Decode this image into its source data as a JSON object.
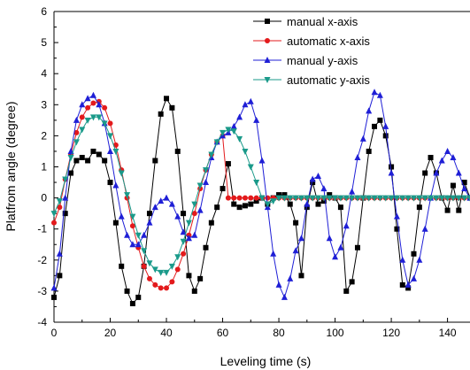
{
  "chart_data": {
    "type": "line",
    "title": "",
    "xlabel": "Leveling time (s)",
    "ylabel": "Platfrom angle (degree)",
    "xlim": [
      0,
      148
    ],
    "ylim": [
      -4,
      6
    ],
    "xticks": [
      0,
      20,
      40,
      60,
      80,
      100,
      120,
      140
    ],
    "yticks": [
      -4,
      -3,
      -2,
      -1,
      0,
      1,
      2,
      3,
      4,
      5,
      6
    ],
    "grid": false,
    "legend_position": "top-right",
    "series": [
      {
        "name": "manual x-axis",
        "color": "#000000",
        "marker": "square",
        "x": [
          0,
          2,
          4,
          6,
          8,
          10,
          12,
          14,
          16,
          18,
          20,
          22,
          24,
          26,
          28,
          30,
          32,
          34,
          36,
          38,
          40,
          42,
          44,
          46,
          48,
          50,
          52,
          54,
          56,
          58,
          60,
          62,
          64,
          66,
          68,
          70,
          72,
          74,
          76,
          78,
          80,
          82,
          84,
          86,
          88,
          90,
          92,
          94,
          96,
          98,
          100,
          102,
          104,
          106,
          108,
          110,
          112,
          114,
          116,
          118,
          120,
          122,
          124,
          126,
          128,
          130,
          132,
          134,
          136,
          138,
          140,
          142,
          144,
          146,
          148
        ],
        "y": [
          -3.2,
          -2.5,
          -0.5,
          0.8,
          1.2,
          1.3,
          1.2,
          1.5,
          1.4,
          1.2,
          0.5,
          -0.8,
          -2.2,
          -3.0,
          -3.4,
          -3.2,
          -2.2,
          -0.5,
          1.2,
          2.7,
          3.2,
          2.9,
          1.5,
          -0.5,
          -2.5,
          -3.0,
          -2.6,
          -1.6,
          -0.8,
          -0.3,
          0.3,
          1.1,
          -0.2,
          -0.3,
          -0.25,
          -0.2,
          -0.1,
          0.0,
          -0.2,
          0.0,
          0.1,
          0.1,
          -0.2,
          -0.8,
          -2.5,
          -0.3,
          0.5,
          -0.2,
          -0.1,
          0.1,
          0.0,
          -0.3,
          -3.0,
          -2.7,
          -1.6,
          0.0,
          1.5,
          2.3,
          2.5,
          2.0,
          1.0,
          -1.0,
          -2.8,
          -2.9,
          -1.8,
          -0.3,
          0.8,
          1.3,
          0.8,
          0.0,
          -0.4,
          0.4,
          -0.4,
          0.5,
          0.0
        ]
      },
      {
        "name": "automatic x-axis",
        "color": "#e31a1c",
        "marker": "circle",
        "x": [
          0,
          2,
          4,
          6,
          8,
          10,
          12,
          14,
          16,
          18,
          20,
          22,
          24,
          26,
          28,
          30,
          32,
          34,
          36,
          38,
          40,
          42,
          44,
          46,
          48,
          50,
          52,
          54,
          56,
          58,
          60,
          62,
          64,
          66,
          68,
          70,
          72,
          74,
          76,
          78,
          80,
          82,
          84,
          86,
          88,
          90,
          92,
          94,
          96,
          98,
          100,
          102,
          104,
          106,
          108,
          110,
          112,
          114,
          116,
          118,
          120,
          122,
          124,
          126,
          128,
          130,
          132,
          134,
          136,
          138,
          140,
          142,
          144,
          146,
          148
        ],
        "y": [
          -0.8,
          -0.3,
          0.6,
          1.4,
          2.1,
          2.6,
          2.9,
          3.05,
          3.1,
          2.9,
          2.4,
          1.7,
          0.9,
          0.0,
          -0.9,
          -1.6,
          -2.2,
          -2.6,
          -2.8,
          -2.9,
          -2.9,
          -2.7,
          -2.3,
          -1.8,
          -1.2,
          -0.5,
          0.3,
          0.9,
          1.4,
          1.8,
          2.0,
          0.0,
          0.0,
          0.0,
          0.0,
          0.0,
          0.0,
          0.0,
          0.0,
          0.0,
          0.0,
          0.0,
          0.0,
          0.0,
          0.0,
          0.0,
          0.0,
          0.0,
          0.0,
          0.0,
          0.0,
          0.0,
          0.0,
          0.0,
          0.0,
          0.0,
          0.0,
          0.0,
          0.0,
          0.0,
          0.0,
          0.0,
          0.0,
          0.0,
          0.0,
          0.0,
          0.0,
          0.0,
          0.0,
          0.0,
          0.0,
          0.0,
          0.0,
          0.0,
          0.0
        ]
      },
      {
        "name": "manual y-axis",
        "color": "#1f1fd6",
        "marker": "triangle-up",
        "x": [
          0,
          2,
          4,
          6,
          8,
          10,
          12,
          14,
          16,
          18,
          20,
          22,
          24,
          26,
          28,
          30,
          32,
          34,
          36,
          38,
          40,
          42,
          44,
          46,
          48,
          50,
          52,
          54,
          56,
          58,
          60,
          62,
          64,
          66,
          68,
          70,
          72,
          74,
          76,
          78,
          80,
          82,
          84,
          86,
          88,
          90,
          92,
          94,
          96,
          98,
          100,
          102,
          104,
          106,
          108,
          110,
          112,
          114,
          116,
          118,
          120,
          122,
          124,
          126,
          128,
          130,
          132,
          134,
          136,
          138,
          140,
          142,
          144,
          146,
          148
        ],
        "y": [
          -2.9,
          -1.8,
          0.0,
          1.5,
          2.5,
          3.0,
          3.2,
          3.3,
          3.0,
          2.4,
          1.5,
          0.4,
          -0.6,
          -1.2,
          -1.5,
          -1.5,
          -1.2,
          -0.8,
          -0.3,
          -0.1,
          0.0,
          -0.2,
          -0.6,
          -1.1,
          -1.3,
          -1.2,
          -0.4,
          0.5,
          1.3,
          1.8,
          2.0,
          2.1,
          2.3,
          2.6,
          3.0,
          3.1,
          2.5,
          1.2,
          -0.3,
          -1.8,
          -2.8,
          -3.2,
          -2.6,
          -1.7,
          -1.3,
          -0.2,
          0.6,
          0.7,
          0.3,
          -1.3,
          -1.9,
          -1.6,
          -0.9,
          0.2,
          1.3,
          1.9,
          2.8,
          3.4,
          3.3,
          2.3,
          0.8,
          -0.6,
          -2.0,
          -2.8,
          -2.6,
          -2.0,
          -1.0,
          0.0,
          0.8,
          1.2,
          1.5,
          1.3,
          0.8,
          0.3,
          0.0
        ]
      },
      {
        "name": "automatic y-axis",
        "color": "#1a9a8a",
        "marker": "triangle-down",
        "x": [
          0,
          2,
          4,
          6,
          8,
          10,
          12,
          14,
          16,
          18,
          20,
          22,
          24,
          26,
          28,
          30,
          32,
          34,
          36,
          38,
          40,
          42,
          44,
          46,
          48,
          50,
          52,
          54,
          56,
          58,
          60,
          62,
          64,
          66,
          68,
          70,
          72,
          74,
          76,
          78,
          80,
          82,
          84,
          86,
          88,
          90,
          92,
          94,
          96,
          98,
          100,
          102,
          104,
          106,
          108,
          110,
          112,
          114,
          116,
          118,
          120,
          122,
          124,
          126,
          128,
          130,
          132,
          134,
          136,
          138,
          140,
          142,
          144,
          146,
          148
        ],
        "y": [
          -0.5,
          -0.1,
          0.6,
          1.3,
          1.8,
          2.2,
          2.5,
          2.6,
          2.6,
          2.4,
          2.0,
          1.5,
          0.8,
          0.1,
          -0.6,
          -1.2,
          -1.7,
          -2.1,
          -2.3,
          -2.4,
          -2.4,
          -2.2,
          -1.9,
          -1.4,
          -0.8,
          -0.2,
          0.4,
          0.9,
          1.4,
          1.8,
          2.1,
          2.2,
          2.15,
          1.9,
          1.5,
          1.0,
          0.5,
          0.0,
          -0.2,
          -0.1,
          0.0,
          0.0,
          0.0,
          0.0,
          0.0,
          0.0,
          0.0,
          0.0,
          0.0,
          0.0,
          0.0,
          0.0,
          0.0,
          0.0,
          0.0,
          0.0,
          0.0,
          0.0,
          0.0,
          0.0,
          0.0,
          0.0,
          0.0,
          0.0,
          0.0,
          0.0,
          0.0,
          0.0,
          0.0,
          0.0,
          0.0,
          0.0,
          0.0,
          0.0,
          0.0
        ]
      }
    ]
  }
}
